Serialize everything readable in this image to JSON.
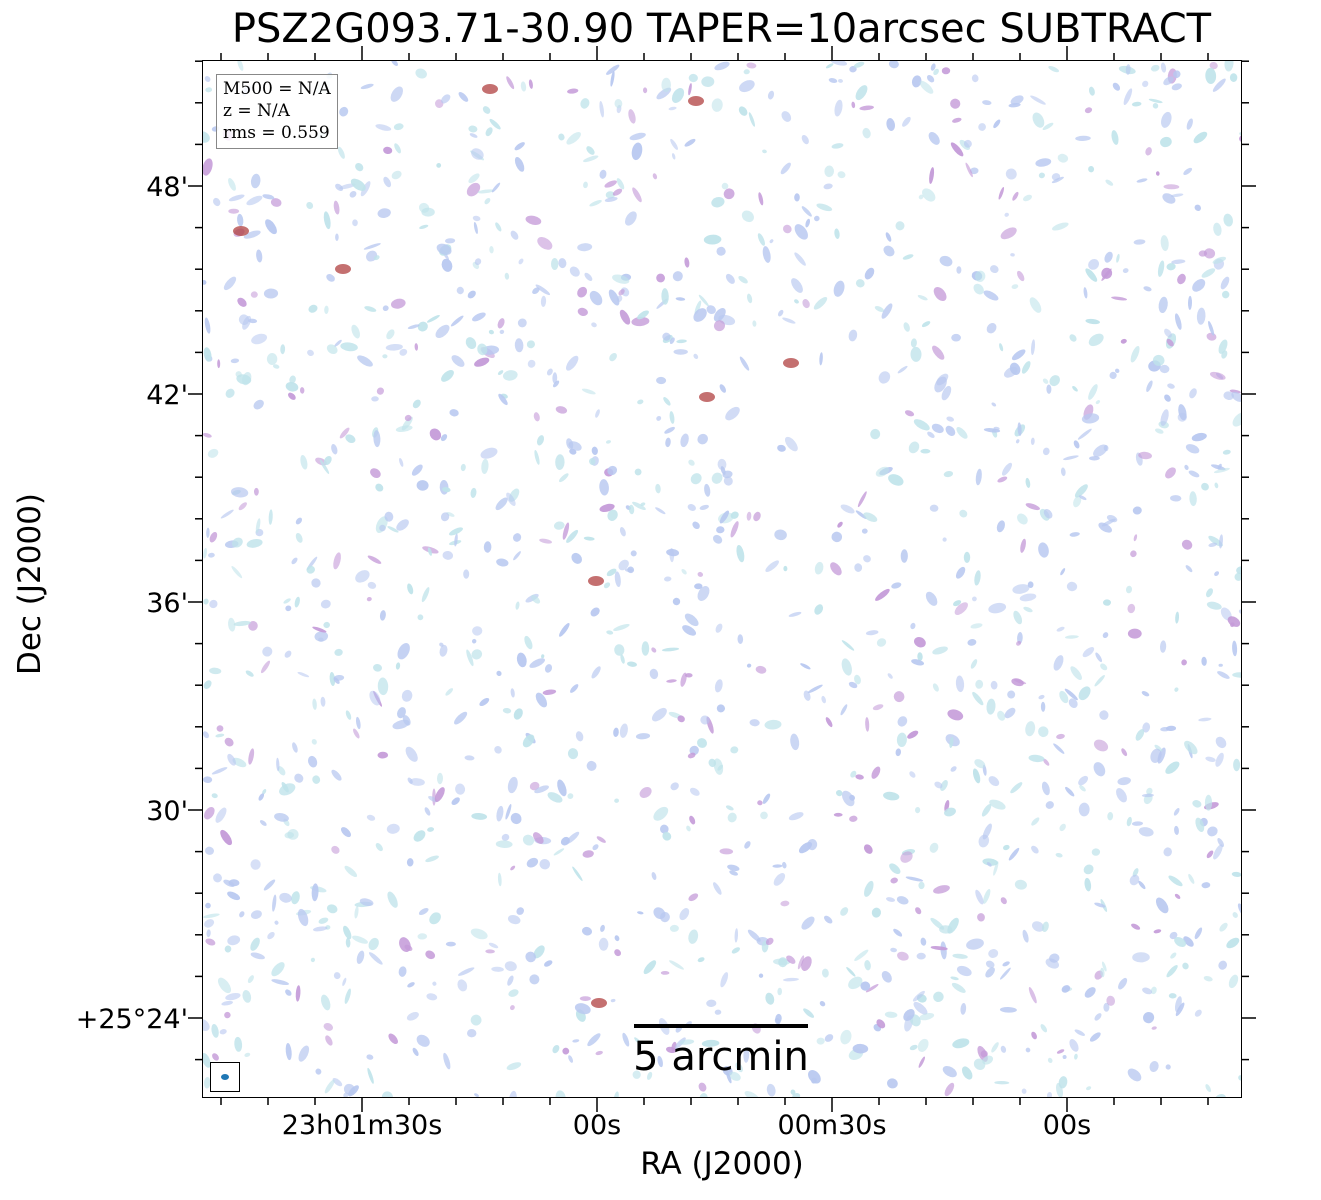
{
  "title": "PSZ2G093.71-30.90 TAPER=10arcsec SUBTRACT",
  "info": {
    "m500": "M500 = N/A",
    "z": "z = N/A",
    "rms": "rms = 0.559"
  },
  "scalebar_label": "5 arcmin",
  "axes": {
    "xlabel": "RA (J2000)",
    "ylabel": "Dec (J2000)",
    "yticks": [
      "48'",
      "42'",
      "36'",
      "30'",
      "+25°24'"
    ],
    "xticks": [
      "23h01m30s",
      "00s",
      "00m30s",
      "00s"
    ]
  },
  "colors": {
    "noise_light": "#bfe3ea",
    "noise_blue": "#b8c8f0",
    "noise_purple": "#c49ad8",
    "source_red": "#b04040",
    "beam": "#1f77b4"
  }
}
